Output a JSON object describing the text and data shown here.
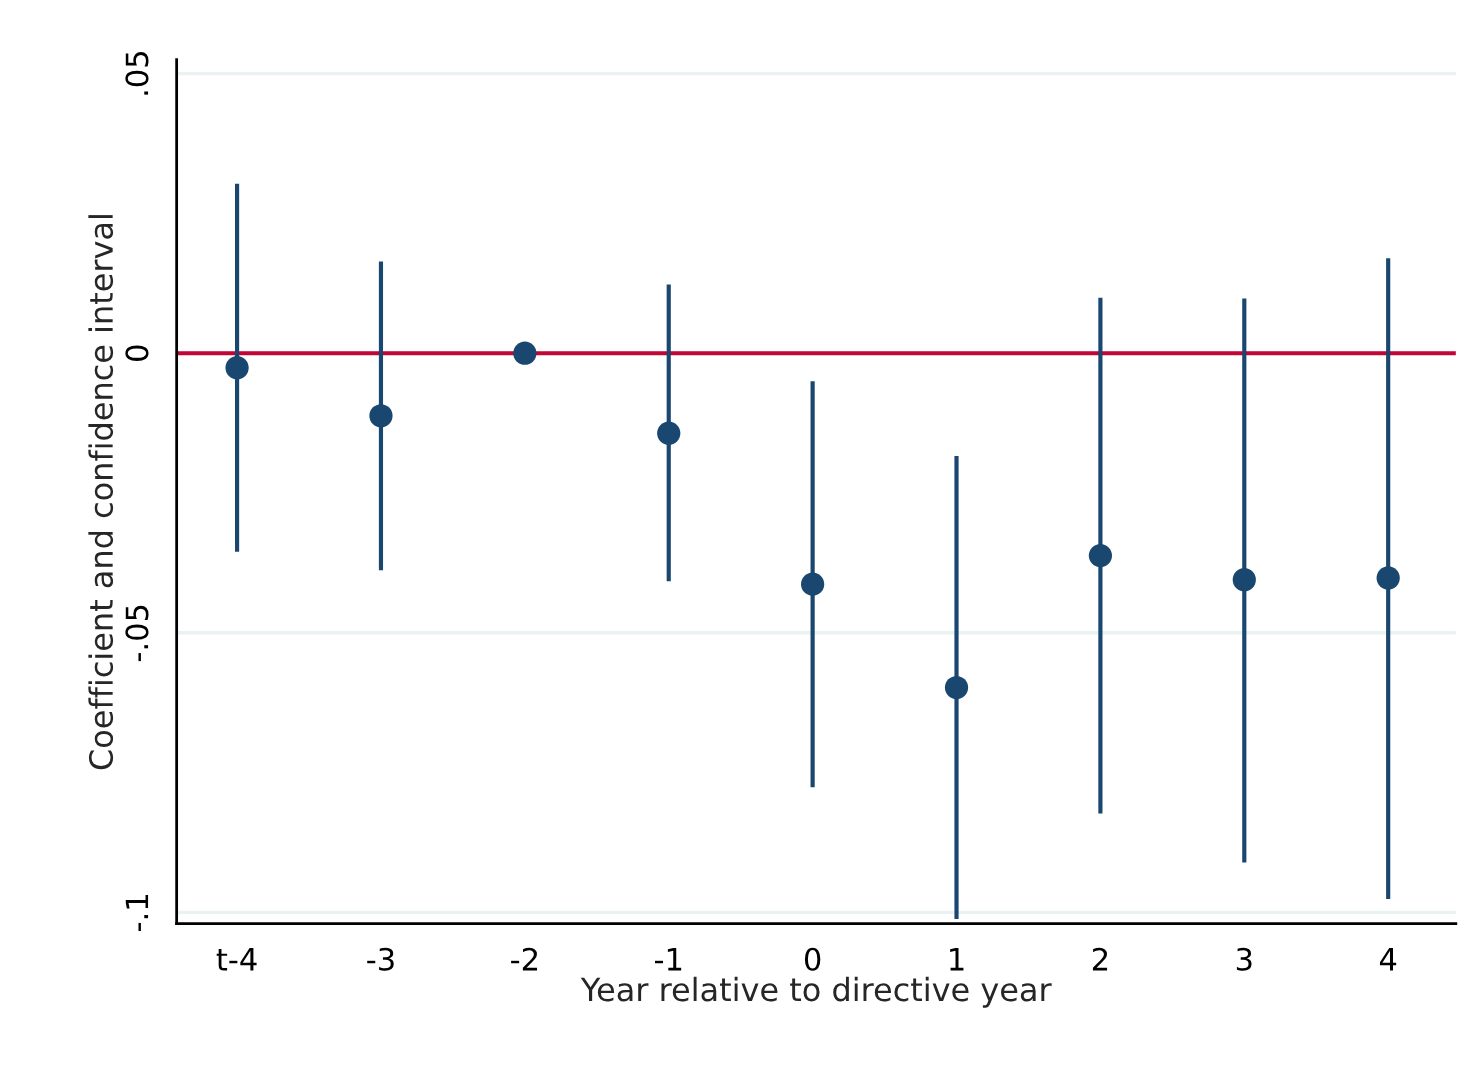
{
  "chart_data": {
    "type": "scatter",
    "xlabel": "Year relative to directive year",
    "ylabel": "Coefficient and confidence interval",
    "categories": [
      "t-4",
      "-3",
      "-2",
      "-1",
      "0",
      "1",
      "2",
      "3",
      "4"
    ],
    "series": [
      {
        "color": "#1a476f",
        "values": [
          -0.0026,
          -0.0112,
          0,
          -0.0143,
          -0.0413,
          -0.0598,
          -0.0362,
          -0.0405,
          -0.0402
        ],
        "errors": [
          [
            -0.0355,
            0.0303
          ],
          [
            -0.0388,
            0.0164
          ],
          null,
          [
            -0.0408,
            0.0123
          ],
          [
            -0.0776,
            -0.005
          ],
          [
            -0.1012,
            -0.0184
          ],
          [
            -0.0823,
            0.0099
          ],
          [
            -0.0911,
            0.0098
          ],
          [
            -0.0976,
            0.017
          ]
        ]
      }
    ],
    "ylim": [
      -0.102,
      0.0525
    ],
    "yticks": [
      {
        "value": -0.1,
        "label": "-.1"
      },
      {
        "value": -0.05,
        "label": "-.05"
      },
      0,
      {
        "value": 0.05,
        "label": ".05"
      }
    ],
    "ref_lines": [
      {
        "axis": "y",
        "value": 0,
        "color": "#c10534"
      }
    ],
    "grid": "y",
    "marker": "circle",
    "legend": false
  }
}
